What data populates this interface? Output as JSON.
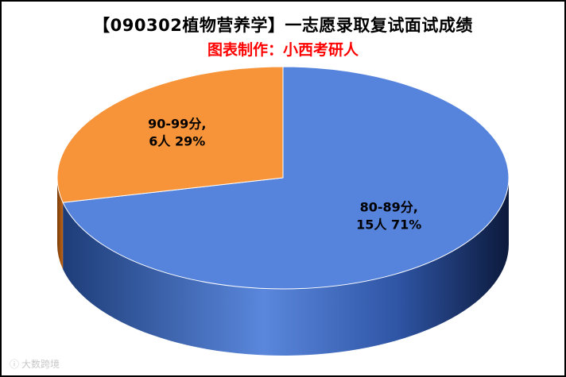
{
  "title": "【090302植物营养学】一志愿录取复试面试成绩",
  "subtitle": "图表制作：小西考研人",
  "watermark": "大数跨境",
  "chart_data": {
    "type": "pie",
    "title": "【090302植物营养学】一志愿录取复试面试成绩",
    "subtitle": "图表制作：小西考研人",
    "slices": [
      {
        "label": "80-89分",
        "count_label": "15人",
        "value": 15,
        "percent": 71,
        "percent_label": "71%",
        "color": "#5684dc"
      },
      {
        "label": "90-99分",
        "count_label": "6人",
        "value": 6,
        "percent": 29,
        "percent_label": "29%",
        "color": "#f79338"
      }
    ],
    "legend": "none",
    "style": "3d"
  }
}
